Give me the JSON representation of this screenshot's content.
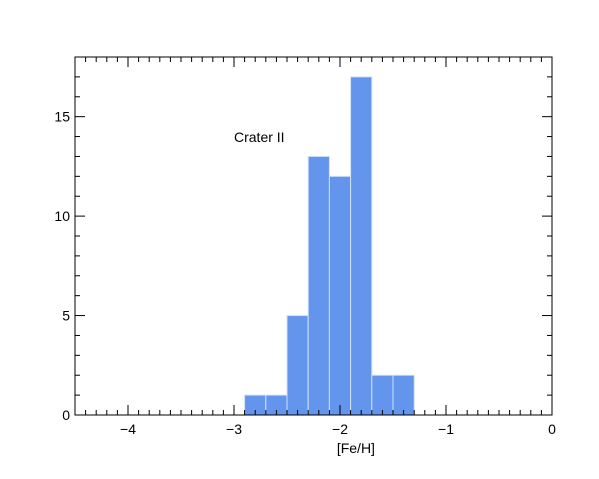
{
  "chart_data": {
    "type": "bar",
    "xlabel": "[Fe/H]",
    "ylabel": "",
    "annotation": "Crater II",
    "xlim": [
      -4.5,
      0
    ],
    "ylim": [
      0,
      18
    ],
    "x_ticks": [
      -4,
      -3,
      -2,
      -1,
      0
    ],
    "x_tick_labels": [
      "−4",
      "−3",
      "−2",
      "−1",
      "0"
    ],
    "y_ticks": [
      0,
      5,
      10,
      15
    ],
    "y_tick_labels": [
      "0",
      "5",
      "10",
      "15"
    ],
    "bins": [
      {
        "x0": -2.9,
        "x1": -2.7,
        "count": 1
      },
      {
        "x0": -2.7,
        "x1": -2.5,
        "count": 1
      },
      {
        "x0": -2.5,
        "x1": -2.3,
        "count": 5
      },
      {
        "x0": -2.3,
        "x1": -2.1,
        "count": 13
      },
      {
        "x0": -2.1,
        "x1": -1.9,
        "count": 12
      },
      {
        "x0": -1.9,
        "x1": -1.7,
        "count": 17
      },
      {
        "x0": -1.7,
        "x1": -1.5,
        "count": 2
      },
      {
        "x0": -1.5,
        "x1": -1.3,
        "count": 2
      }
    ],
    "bar_color": "#6495ED",
    "bar_edge_color": "#CFE0F8",
    "grid": false,
    "legend": "none"
  }
}
